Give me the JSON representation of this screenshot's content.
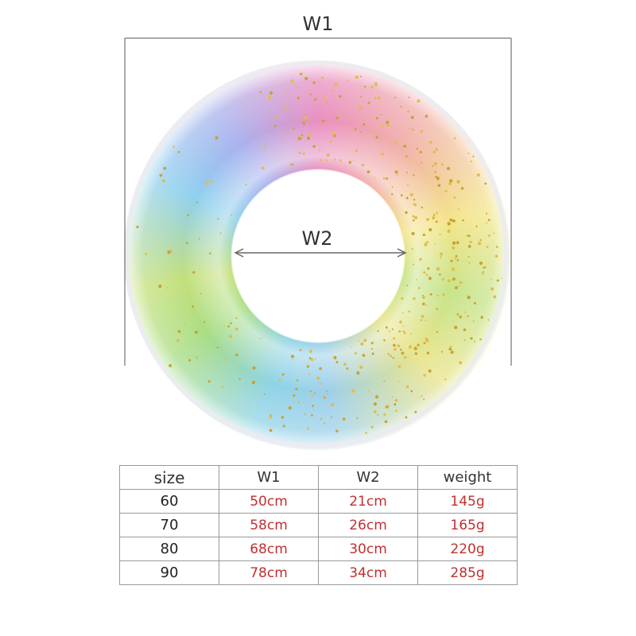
{
  "labels": {
    "outer": "W1",
    "inner": "W2"
  },
  "table": {
    "header": [
      "size",
      "W1",
      "W2",
      "weight"
    ],
    "rows": [
      [
        "60",
        "50cm",
        "21cm",
        "145g"
      ],
      [
        "70",
        "58cm",
        "26cm",
        "165g"
      ],
      [
        "80",
        "68cm",
        "30cm",
        "220g"
      ],
      [
        "90",
        "78cm",
        "34cm",
        "285g"
      ]
    ]
  }
}
